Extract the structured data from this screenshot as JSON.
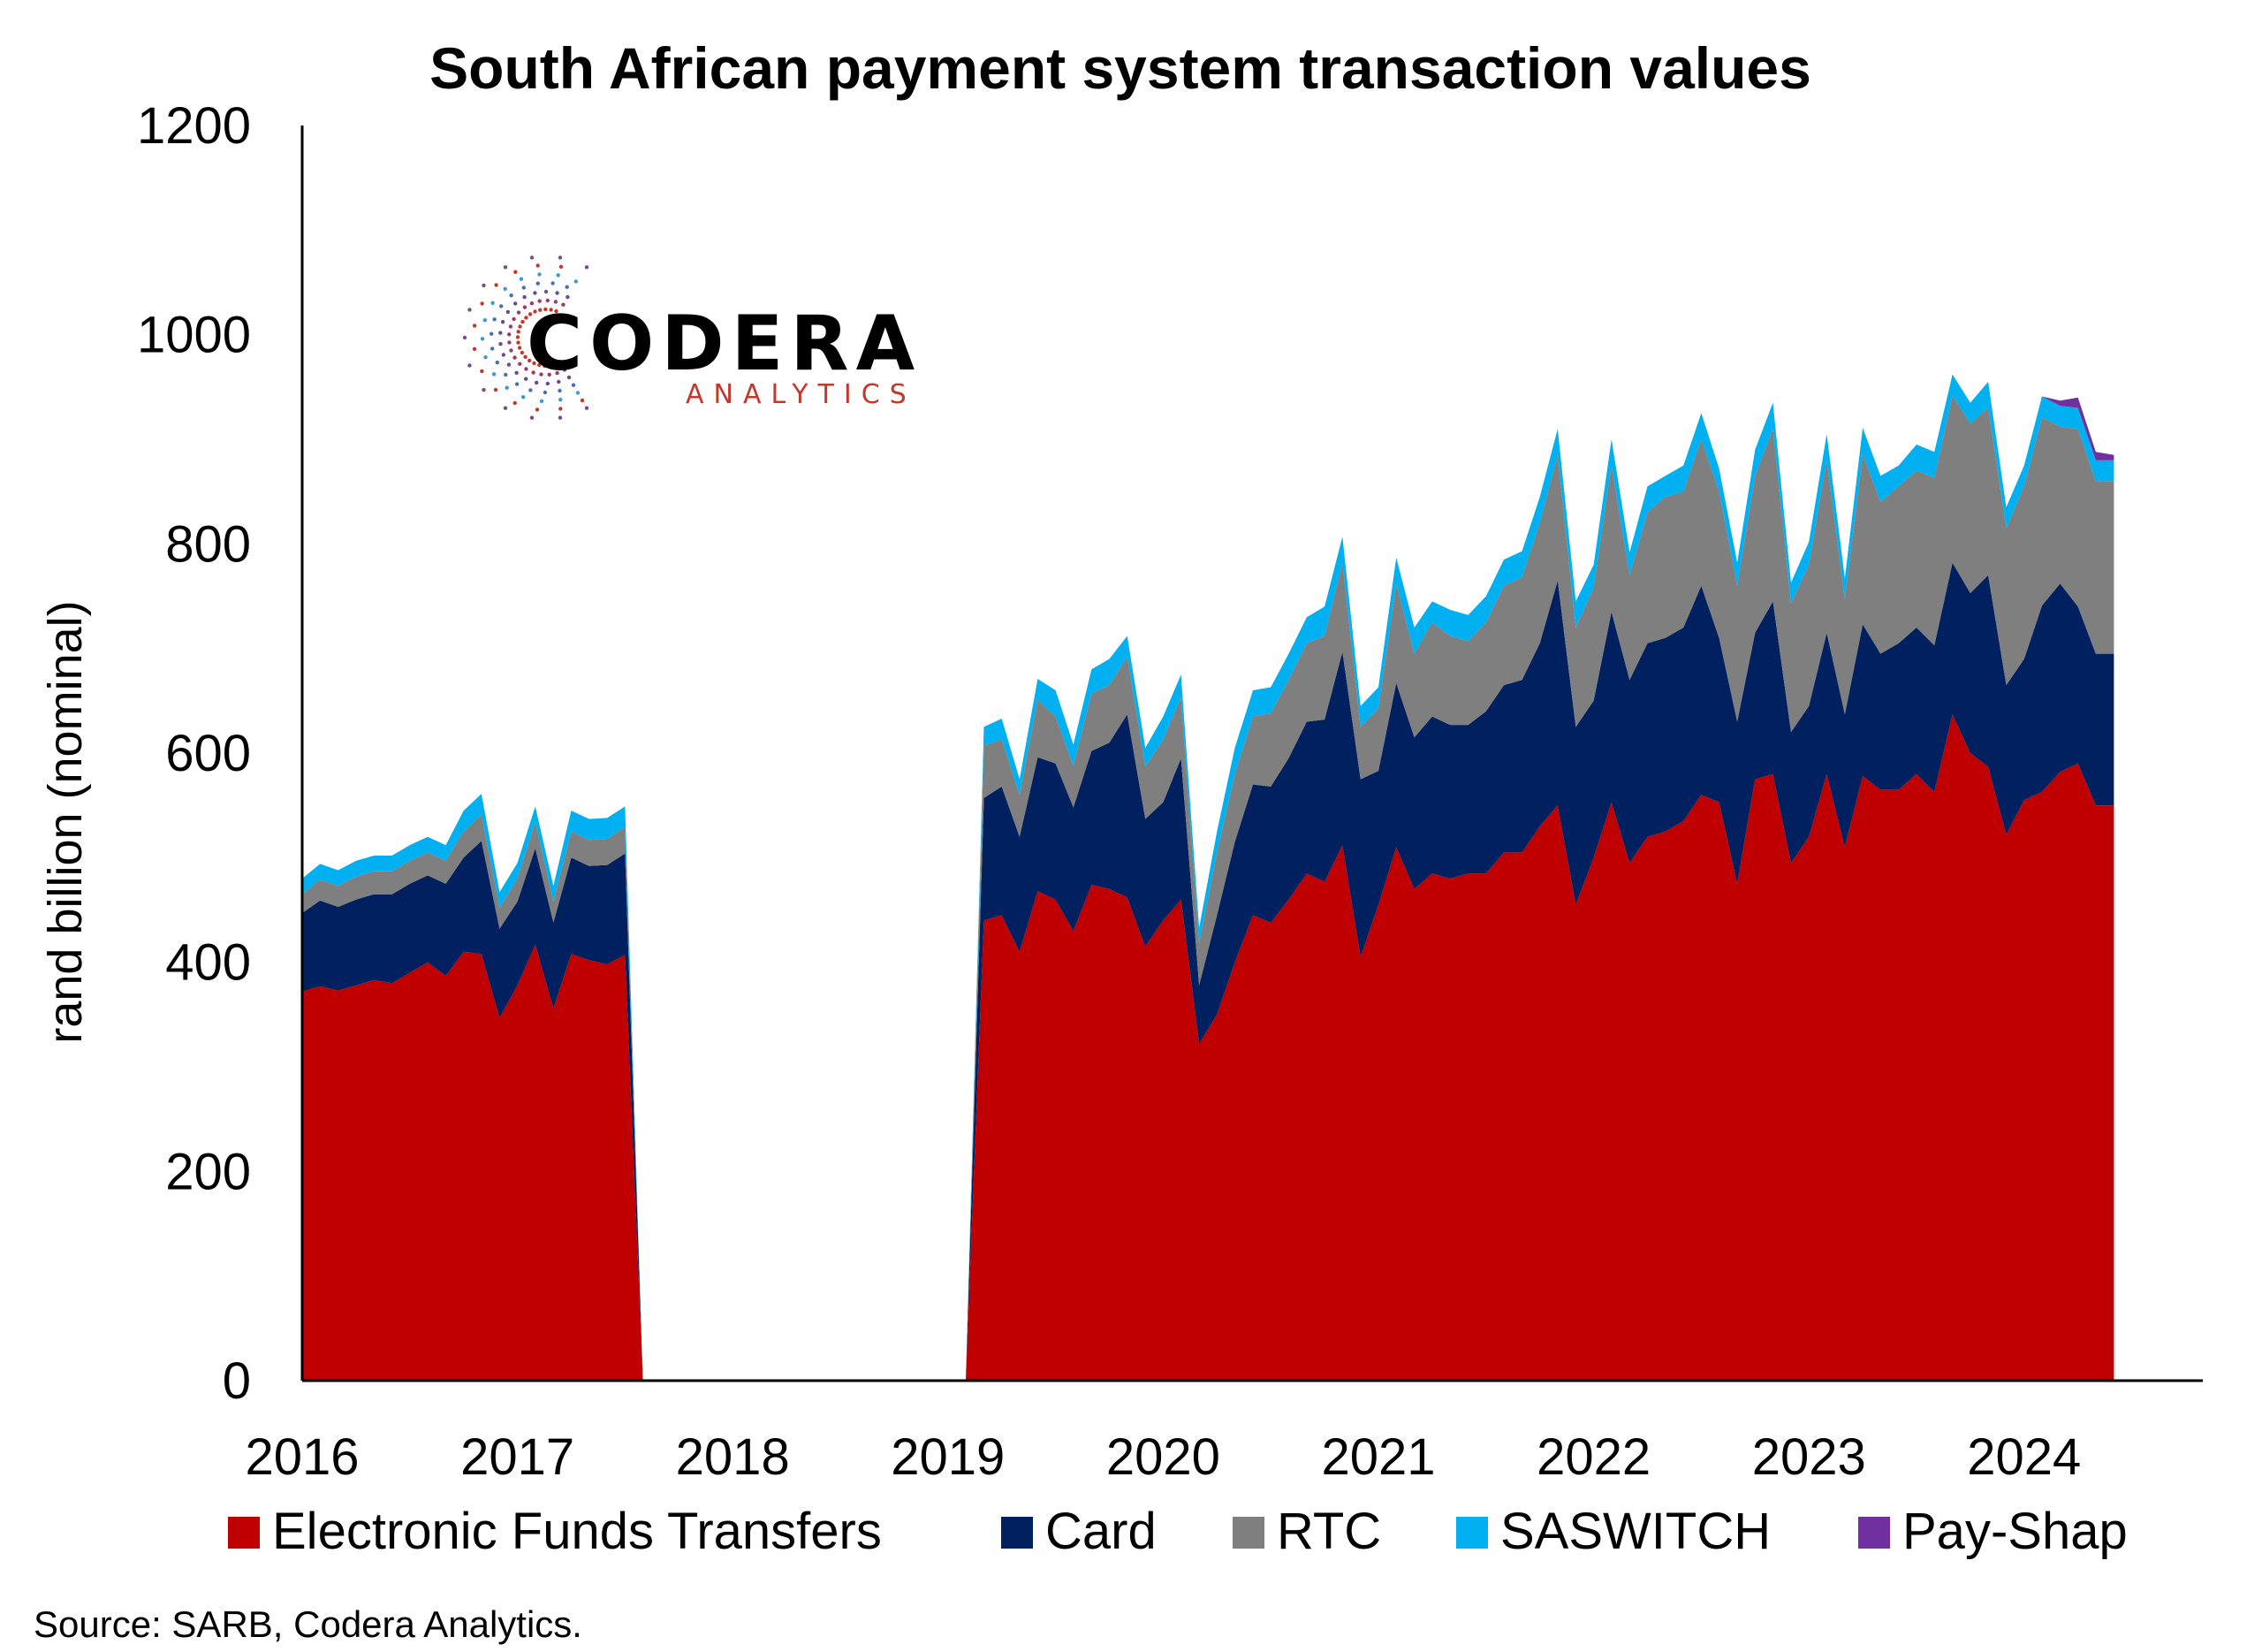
{
  "chart_data": {
    "type": "area",
    "stacked": true,
    "title": "South African payment system transaction values",
    "ylabel": "rand billion (nominal)",
    "xlabel": "",
    "ylim": [
      0,
      1200
    ],
    "yticks": [
      0,
      200,
      400,
      600,
      800,
      1000,
      1200
    ],
    "xticks": [
      2016,
      2017,
      2018,
      2019,
      2020,
      2021,
      2022,
      2023,
      2024
    ],
    "xlim": [
      2016,
      2024.83
    ],
    "legend_position": "bottom",
    "segments": [
      {
        "x": [
          2016.0,
          2016.083,
          2016.167,
          2016.25,
          2016.333,
          2016.417,
          2016.5,
          2016.583,
          2016.667,
          2016.75,
          2016.833,
          2016.917,
          2017.0,
          2017.083,
          2017.167,
          2017.25,
          2017.333,
          2017.417,
          2017.5,
          2017.583
        ],
        "series": [
          {
            "name": "Electronic Funds Transfers",
            "values": [
              372,
              377,
              373,
              378,
              383,
              380,
              390,
              400,
              387,
              410,
              408,
              347,
              378,
              417,
              356,
              408,
              402,
              398,
              407,
              0
            ]
          },
          {
            "name": "Card",
            "values": [
              75,
              82,
              80,
              82,
              82,
              85,
              85,
              83,
              88,
              90,
              108,
              85,
              80,
              92,
              82,
              92,
              90,
              95,
              97,
              0
            ]
          },
          {
            "name": "RTC",
            "values": [
              18,
              20,
              20,
              22,
              22,
              22,
              22,
              22,
              22,
              25,
              25,
              20,
              22,
              25,
              20,
              25,
              25,
              25,
              25,
              0
            ]
          },
          {
            "name": "SASWITCH",
            "values": [
              15,
              15,
              15,
              15,
              15,
              15,
              15,
              15,
              15,
              20,
              20,
              15,
              15,
              15,
              15,
              20,
              20,
              20,
              20,
              0
            ]
          },
          {
            "name": "Pay-Shap",
            "values": [
              0,
              0,
              0,
              0,
              0,
              0,
              0,
              0,
              0,
              0,
              0,
              0,
              0,
              0,
              0,
              0,
              0,
              0,
              0,
              0
            ]
          }
        ]
      },
      {
        "x": [
          2019.083,
          2019.167,
          2019.25,
          2019.333,
          2019.417,
          2019.5,
          2019.583,
          2019.667,
          2019.75,
          2019.833,
          2019.917,
          2020.0,
          2020.083,
          2020.167,
          2020.25,
          2020.333,
          2020.417,
          2020.5,
          2020.583,
          2020.667,
          2020.75,
          2020.833,
          2020.917,
          2021.0,
          2021.083,
          2021.167,
          2021.25,
          2021.333,
          2021.417,
          2021.5,
          2021.583,
          2021.667,
          2021.75,
          2021.833,
          2021.917,
          2022.0,
          2022.083,
          2022.167,
          2022.25,
          2022.333,
          2022.417,
          2022.5,
          2022.583,
          2022.667,
          2022.75,
          2022.833,
          2022.917,
          2023.0,
          2023.083,
          2023.167,
          2023.25,
          2023.333,
          2023.417,
          2023.5,
          2023.583,
          2023.667,
          2023.75,
          2023.833,
          2023.917,
          2024.0,
          2024.083,
          2024.167,
          2024.25,
          2024.333,
          2024.417
        ],
        "series": [
          {
            "name": "Electronic Funds Transfers",
            "values": [
              0,
              440,
              445,
              410,
              468,
              460,
              430,
              474,
              470,
              462,
              415,
              440,
              460,
              322,
              350,
              400,
              445,
              438,
              460,
              485,
              477,
              512,
              405,
              455,
              510,
              470,
              485,
              480,
              485,
              485,
              505,
              505,
              530,
              550,
              455,
              500,
              553,
              495,
              520,
              525,
              535,
              560,
              553,
              475,
              575,
              580,
              495,
              520,
              580,
              510,
              578,
              565,
              565,
              580,
              563,
              637,
              600,
              587,
              522,
              555,
              563,
              582,
              590,
              550,
              550
            ]
          },
          {
            "name": "Card",
            "values": [
              0,
              117,
              123,
              110,
              128,
              130,
              118,
              128,
              140,
              175,
              122,
              113,
              135,
              56,
              95,
              115,
              125,
              130,
              135,
              145,
              155,
              185,
              170,
              128,
              157,
              145,
              150,
              147,
              142,
              155,
              160,
              165,
              175,
              215,
              170,
              150,
              182,
              175,
              185,
              185,
              185,
              200,
              157,
              155,
              140,
              165,
              125,
              125,
              135,
              127,
              145,
              130,
              140,
              140,
              140,
              145,
              153,
              183,
              143,
              135,
              178,
              180,
              150,
              145,
              145
            ]
          },
          {
            "name": "RTC",
            "values": [
              0,
              50,
              45,
              40,
              55,
              45,
              40,
              55,
              55,
              55,
              50,
              60,
              58,
              40,
              60,
              65,
              65,
              70,
              75,
              75,
              80,
              85,
              50,
              60,
              95,
              80,
              90,
              85,
              80,
              85,
              95,
              98,
              115,
              120,
              95,
              108,
              140,
              100,
              125,
              135,
              130,
              140,
              140,
              130,
              150,
              165,
              123,
              135,
              165,
              110,
              163,
              145,
              150,
              150,
              160,
              160,
              162,
              160,
              150,
              165,
              180,
              150,
              170,
              165,
              165
            ]
          },
          {
            "name": "SASWITCH",
            "values": [
              0,
              18,
              20,
              15,
              20,
              25,
              20,
              23,
              25,
              20,
              18,
              22,
              22,
              15,
              20,
              25,
              25,
              25,
              25,
              25,
              28,
              25,
              20,
              20,
              25,
              25,
              20,
              25,
              25,
              25,
              25,
              25,
              25,
              25,
              25,
              22,
              25,
              22,
              25,
              20,
              25,
              25,
              22,
              22,
              25,
              25,
              20,
              22,
              25,
              20,
              25,
              25,
              20,
              25,
              25,
              20,
              20,
              25,
              20,
              20,
              20,
              20,
              20,
              20,
              20
            ]
          },
          {
            "name": "Pay-Shap",
            "values": [
              0,
              0,
              0,
              0,
              0,
              0,
              0,
              0,
              0,
              0,
              0,
              0,
              0,
              0,
              0,
              0,
              0,
              0,
              0,
              0,
              0,
              0,
              0,
              0,
              0,
              0,
              0,
              0,
              0,
              0,
              0,
              0,
              0,
              0,
              0,
              0,
              0,
              0,
              0,
              0,
              0,
              0,
              0,
              0,
              0,
              0,
              0,
              0,
              0,
              0,
              0,
              0,
              0,
              0,
              0,
              0,
              0,
              0,
              0,
              0,
              0,
              5,
              10,
              8,
              5
            ]
          }
        ]
      }
    ],
    "colors": {
      "Electronic Funds Transfers": "#c00000",
      "Card": "#002060",
      "RTC": "#7f7f7f",
      "SASWITCH": "#00b0f0",
      "Pay-Shap": "#7030a0"
    }
  },
  "legend": [
    {
      "label": "Electronic Funds Transfers",
      "color": "#c00000"
    },
    {
      "label": "Card",
      "color": "#002060"
    },
    {
      "label": "RTC",
      "color": "#7f7f7f"
    },
    {
      "label": "SASWITCH",
      "color": "#00b0f0"
    },
    {
      "label": "Pay-Shap",
      "color": "#7030a0"
    }
  ],
  "logo": {
    "main": "CODERA",
    "sub": "ANALYTICS"
  },
  "source": "Source: SARB, Codera Analytics."
}
